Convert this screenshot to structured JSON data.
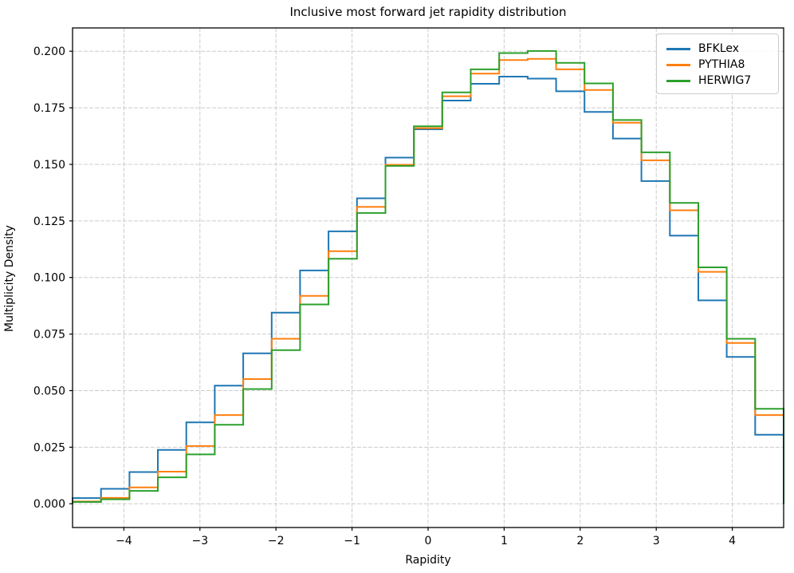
{
  "figure": {
    "title": "Inclusive most forward jet rapidity distribution",
    "xlabel": "Rapidity",
    "ylabel": "Multiplicity Density"
  },
  "chart_data": {
    "type": "line",
    "line_style": "histogram-step",
    "title": "Inclusive most forward jet rapidity distribution",
    "xlabel": "Rapidity",
    "ylabel": "Multiplicity Density",
    "xlim": [
      -4.675,
      4.675
    ],
    "ylim": [
      -0.0105,
      0.2103
    ],
    "grid": true,
    "grid_style": "dashed",
    "grid_color": "#cccccc",
    "legend_position": "upper right",
    "bin_edges": [
      -4.675,
      -4.301,
      -3.927,
      -3.553,
      -3.179,
      -2.805,
      -2.431,
      -2.057,
      -1.683,
      -1.309,
      -0.935,
      -0.561,
      -0.187,
      0.187,
      0.561,
      0.935,
      1.309,
      1.683,
      2.057,
      2.431,
      2.805,
      3.179,
      3.553,
      3.927,
      4.301,
      4.675
    ],
    "series": [
      {
        "name": "BFKLex",
        "color": "#1f77b4",
        "values": [
          0.0025,
          0.0066,
          0.014,
          0.0238,
          0.036,
          0.0522,
          0.0665,
          0.0845,
          0.1031,
          0.1204,
          0.135,
          0.153,
          0.1655,
          0.1782,
          0.1856,
          0.1888,
          0.1879,
          0.1823,
          0.1732,
          0.1614,
          0.1426,
          0.1185,
          0.0899,
          0.0649,
          0.0305
        ]
      },
      {
        "name": "PYTHIA8",
        "color": "#ff7f0e",
        "values": [
          0.001,
          0.0026,
          0.0072,
          0.0142,
          0.0255,
          0.0392,
          0.0551,
          0.0729,
          0.0919,
          0.1116,
          0.1312,
          0.1498,
          0.166,
          0.1801,
          0.1901,
          0.1961,
          0.1966,
          0.192,
          0.1829,
          0.1684,
          0.1518,
          0.1297,
          0.1025,
          0.0711,
          0.0392
        ]
      },
      {
        "name": "HERWIG7",
        "color": "#2ca02c",
        "values": [
          0.0008,
          0.002,
          0.0057,
          0.0117,
          0.0218,
          0.0349,
          0.0507,
          0.0679,
          0.0881,
          0.1083,
          0.1285,
          0.1493,
          0.1668,
          0.1818,
          0.192,
          0.1992,
          0.2001,
          0.1949,
          0.1858,
          0.1696,
          0.1553,
          0.133,
          0.1045,
          0.0729,
          0.042
        ]
      }
    ],
    "xticks": {
      "values": [
        -4,
        -3,
        -2,
        -1,
        0,
        1,
        2,
        3,
        4
      ],
      "labels": [
        "−4",
        "−3",
        "−2",
        "−1",
        "0",
        "1",
        "2",
        "3",
        "4"
      ]
    },
    "yticks": {
      "values": [
        0.0,
        0.025,
        0.05,
        0.075,
        0.1,
        0.125,
        0.15,
        0.175,
        0.2
      ],
      "labels": [
        "0.000",
        "0.025",
        "0.050",
        "0.075",
        "0.100",
        "0.125",
        "0.150",
        "0.175",
        "0.200"
      ]
    }
  }
}
